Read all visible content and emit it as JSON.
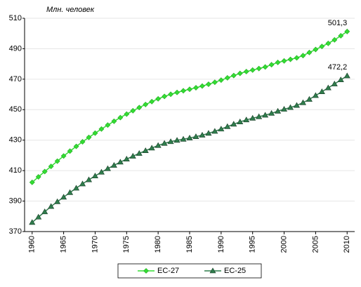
{
  "chart_data": {
    "type": "line",
    "title": "Млн. человек",
    "x": [
      1960,
      1961,
      1962,
      1963,
      1964,
      1965,
      1966,
      1967,
      1968,
      1969,
      1970,
      1971,
      1972,
      1973,
      1974,
      1975,
      1976,
      1977,
      1978,
      1979,
      1980,
      1981,
      1982,
      1983,
      1984,
      1985,
      1986,
      1987,
      1988,
      1989,
      1990,
      1991,
      1992,
      1993,
      1994,
      1995,
      1996,
      1997,
      1998,
      1999,
      2000,
      2001,
      2002,
      2003,
      2004,
      2005,
      2006,
      2007,
      2008,
      2009,
      2010
    ],
    "series": [
      {
        "name": "ЕС-27",
        "color": "#33dd33",
        "edge": "#22aa22",
        "marker": "diamond",
        "values": [
          402.3,
          405.9,
          409.4,
          412.8,
          416.2,
          419.6,
          422.8,
          425.9,
          428.9,
          431.8,
          434.6,
          437.3,
          439.9,
          442.4,
          444.8,
          447.1,
          449.3,
          451.4,
          453.4,
          455.3,
          457.1,
          458.7,
          460.1,
          461.3,
          462.4,
          463.4,
          464.4,
          465.5,
          466.7,
          468.0,
          469.4,
          470.9,
          472.4,
          473.8,
          475.0,
          476.0,
          477.0,
          478.0,
          479.5,
          481.0,
          482.0,
          483.0,
          484.0,
          485.5,
          487.5,
          489.5,
          491.5,
          493.5,
          495.8,
          498.5,
          501.3
        ],
        "value_labels": [
          null,
          null,
          null,
          null,
          null,
          null,
          null,
          null,
          null,
          null,
          null,
          null,
          null,
          null,
          null,
          null,
          null,
          null,
          null,
          null,
          null,
          null,
          null,
          null,
          null,
          null,
          null,
          null,
          null,
          null,
          null,
          null,
          null,
          null,
          null,
          null,
          null,
          null,
          null,
          null,
          null,
          null,
          null,
          null,
          null,
          null,
          null,
          null,
          null,
          null,
          "501,3"
        ]
      },
      {
        "name": "ЕС-25",
        "color": "#2f7d4c",
        "edge": "#1a3d28",
        "marker": "triangle",
        "values": [
          376.0,
          379.5,
          383.0,
          386.5,
          389.6,
          392.6,
          395.6,
          398.5,
          401.3,
          404.0,
          406.5,
          409.0,
          411.3,
          413.5,
          415.6,
          417.6,
          419.5,
          421.3,
          423.1,
          424.8,
          426.5,
          427.9,
          429.0,
          429.9,
          430.6,
          431.4,
          432.3,
          433.3,
          434.5,
          435.8,
          437.3,
          438.9,
          440.5,
          442.0,
          443.3,
          444.4,
          445.4,
          446.4,
          447.6,
          449.0,
          450.3,
          451.4,
          452.8,
          454.6,
          456.8,
          459.3,
          461.8,
          464.3,
          466.9,
          469.6,
          472.2
        ],
        "value_labels": [
          null,
          null,
          null,
          null,
          null,
          null,
          null,
          null,
          null,
          null,
          null,
          null,
          null,
          null,
          null,
          null,
          null,
          null,
          null,
          null,
          null,
          null,
          null,
          null,
          null,
          null,
          null,
          null,
          null,
          null,
          null,
          null,
          null,
          null,
          null,
          null,
          null,
          null,
          null,
          null,
          null,
          null,
          null,
          null,
          null,
          null,
          null,
          null,
          null,
          null,
          "472,2"
        ]
      }
    ],
    "xlim": [
      1958.8,
      2011.2
    ],
    "xticks": [
      1960,
      1965,
      1970,
      1975,
      1980,
      1985,
      1990,
      1995,
      2000,
      2005,
      2010
    ],
    "ylim": [
      370,
      510
    ],
    "yticks": [
      370,
      390,
      410,
      430,
      450,
      470,
      490,
      510
    ],
    "grid": true,
    "legend": "bottom"
  }
}
